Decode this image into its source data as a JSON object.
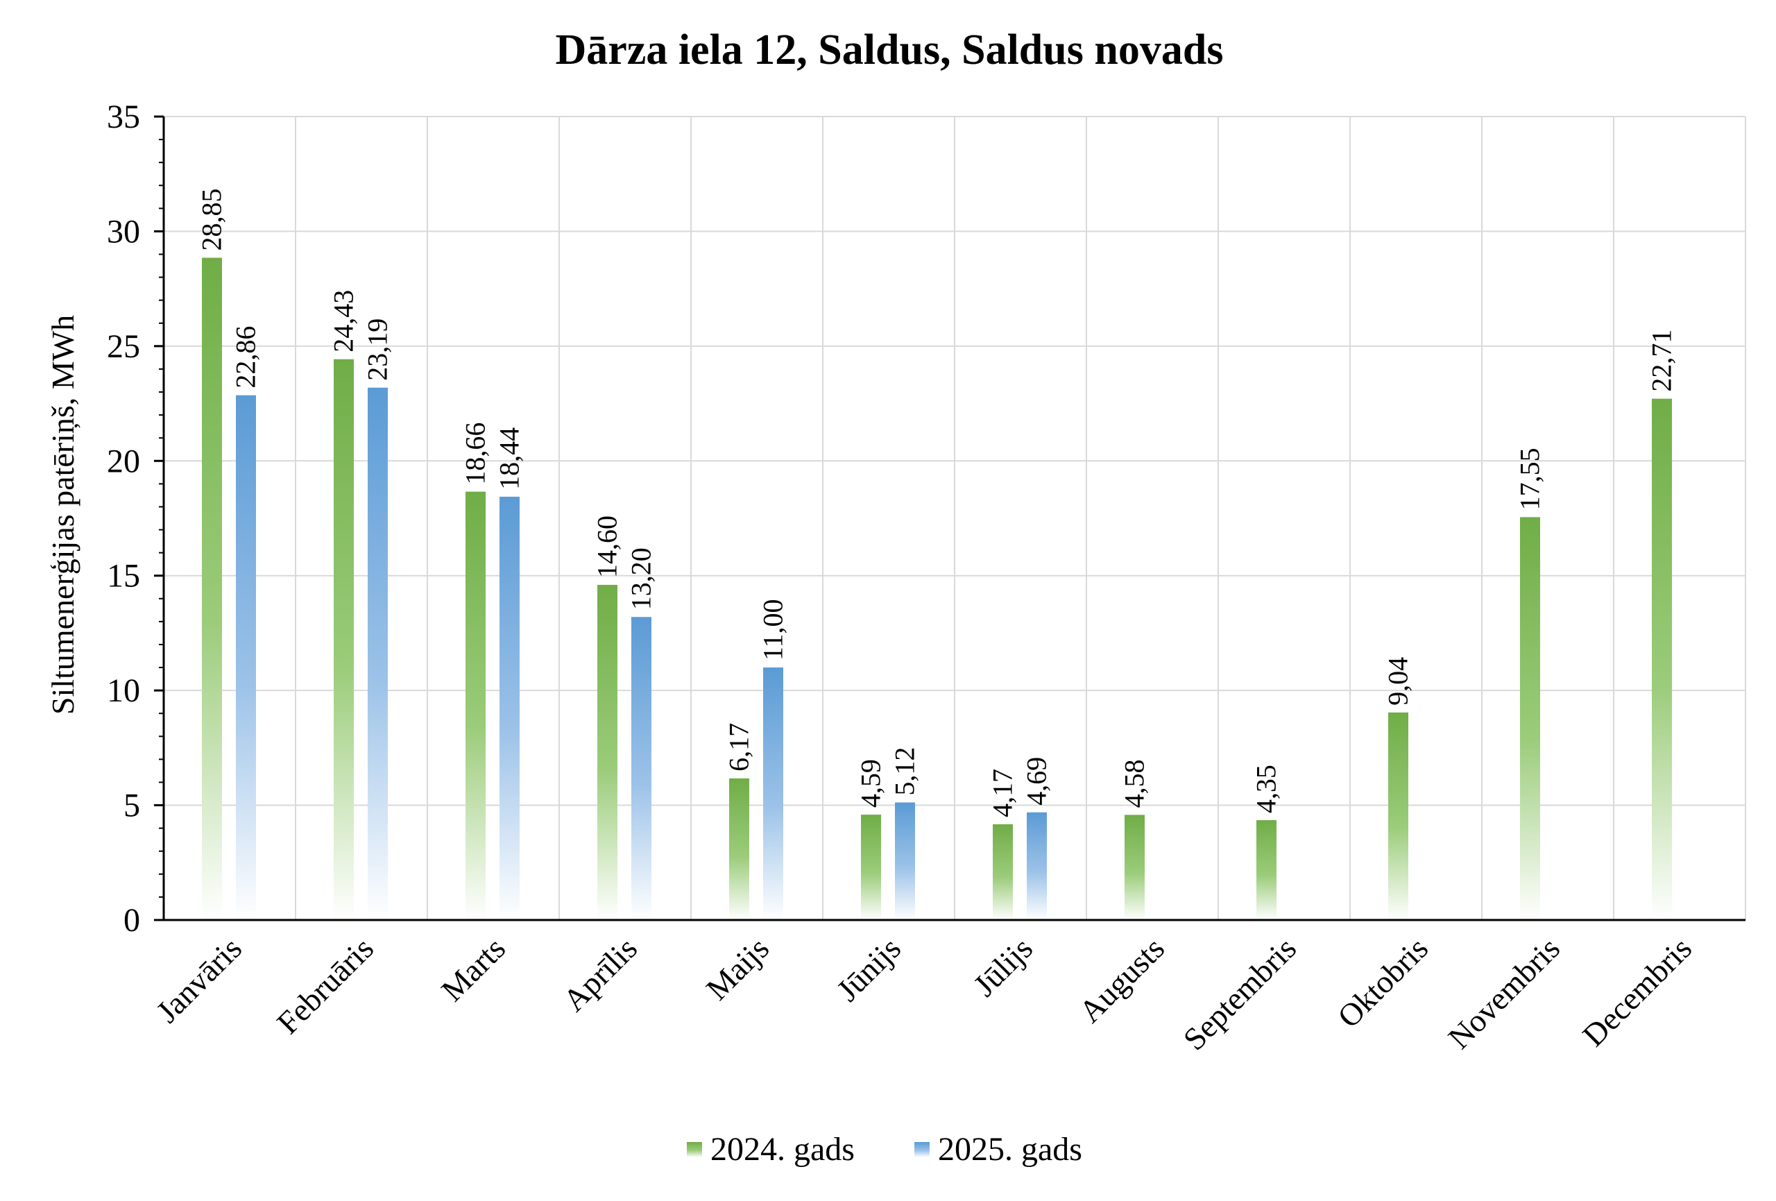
{
  "chart_data": {
    "type": "bar",
    "title": "Dārza iela 12, Saldus, Saldus novads",
    "xlabel": "",
    "ylabel": "Siltumenerģijas patēriņš, MWh",
    "ylim": [
      0,
      35
    ],
    "yticks": [
      0,
      5,
      10,
      15,
      20,
      25,
      30,
      35
    ],
    "grid": true,
    "legend_position": "bottom",
    "categories": [
      "Janvāris",
      "Februāris",
      "Marts",
      "Aprīlis",
      "Maijs",
      "Jūnijs",
      "Jūlijs",
      "Augusts",
      "Septembris",
      "Oktobris",
      "Novembris",
      "Decembris"
    ],
    "series": [
      {
        "name": "2024. gads",
        "color": "#70ad47",
        "values": [
          28.85,
          24.43,
          18.66,
          14.6,
          6.17,
          4.59,
          4.17,
          4.58,
          4.35,
          9.04,
          17.55,
          22.71
        ],
        "labels": [
          "28,85",
          "24,43",
          "18,66",
          "14,60",
          "6,17",
          "4,59",
          "4,17",
          "4,58",
          "4,35",
          "9,04",
          "17,55",
          "22,71"
        ]
      },
      {
        "name": "2025. gads",
        "color": "#5b9bd5",
        "values": [
          22.86,
          23.19,
          18.44,
          13.2,
          11.0,
          5.12,
          4.69,
          null,
          null,
          null,
          null,
          null
        ],
        "labels": [
          "22,86",
          "23,19",
          "18,44",
          "13,20",
          "11,00",
          "5,12",
          "4,69",
          null,
          null,
          null,
          null,
          null
        ]
      }
    ]
  }
}
